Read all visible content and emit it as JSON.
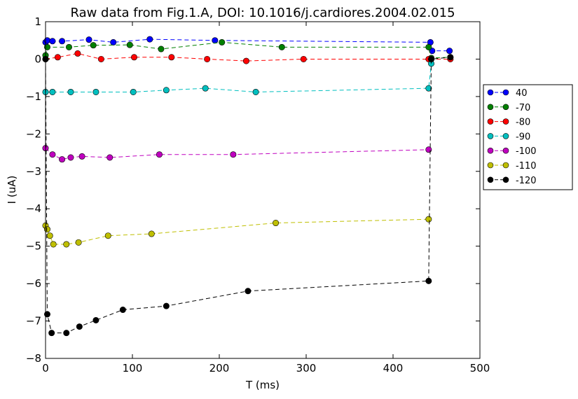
{
  "chart_data": {
    "type": "line",
    "title": "Raw data from Fig.1.A, DOI: 10.1016/j.cardiores.2004.02.015",
    "xlabel": "T (ms)",
    "ylabel": "I (uA)",
    "xlim": [
      0,
      500
    ],
    "ylim": [
      -8,
      1
    ],
    "xticks": [
      "0",
      "100",
      "200",
      "300",
      "400",
      "500"
    ],
    "yticks": [
      "−8",
      "−7",
      "−6",
      "−5",
      "−4",
      "−3",
      "−2",
      "−1",
      "0",
      "1"
    ],
    "grid": false,
    "legend_position": "outside-right",
    "series": [
      {
        "name": "40",
        "color": "#0000ff",
        "x": [
          0,
          2,
          8,
          19,
          50,
          78,
          120,
          195,
          443,
          445,
          465
        ],
        "y": [
          0.45,
          0.5,
          0.48,
          0.48,
          0.52,
          0.45,
          0.53,
          0.5,
          0.45,
          0.22,
          0.22
        ]
      },
      {
        "name": "-70",
        "color": "#008000",
        "x": [
          0,
          2,
          27,
          55,
          97,
          133,
          203,
          272,
          441,
          444,
          466
        ],
        "y": [
          0.1,
          0.32,
          0.32,
          0.37,
          0.38,
          0.27,
          0.45,
          0.32,
          0.32,
          0.03,
          0.05
        ]
      },
      {
        "name": "-80",
        "color": "#ff0000",
        "x": [
          0,
          14,
          37,
          64,
          102,
          145,
          186,
          231,
          297,
          441,
          444,
          466
        ],
        "y": [
          0.0,
          0.05,
          0.15,
          0.0,
          0.05,
          0.05,
          0.0,
          -0.05,
          0.0,
          0.0,
          0.0,
          0.0
        ]
      },
      {
        "name": "-90",
        "color": "#00bfbf",
        "x": [
          0,
          8,
          29,
          58,
          101,
          139,
          184,
          242,
          441,
          444
        ],
        "y": [
          -0.88,
          -0.88,
          -0.88,
          -0.88,
          -0.88,
          -0.83,
          -0.78,
          -0.88,
          -0.78,
          -0.12
        ]
      },
      {
        "name": "-100",
        "color": "#bf00bf",
        "x": [
          0,
          8,
          19,
          29,
          42,
          74,
          131,
          216,
          441
        ],
        "y": [
          -2.38,
          -2.55,
          -2.68,
          -2.63,
          -2.6,
          -2.63,
          -2.55,
          -2.55,
          -2.42
        ]
      },
      {
        "name": "-110",
        "color": "#bfbf00",
        "x": [
          0,
          2,
          5,
          9,
          24,
          38,
          72,
          122,
          265,
          441
        ],
        "y": [
          -4.45,
          -4.55,
          -4.72,
          -4.95,
          -4.95,
          -4.9,
          -4.72,
          -4.67,
          -4.38,
          -4.28
        ]
      },
      {
        "name": "-120",
        "color": "#000000",
        "x": [
          0,
          2,
          7,
          24,
          39,
          58,
          89,
          139,
          233,
          441,
          444,
          466
        ],
        "y": [
          0.0,
          -6.82,
          -7.32,
          -7.32,
          -7.15,
          -6.98,
          -6.7,
          -6.6,
          -6.2,
          -5.93,
          0.0,
          0.05
        ]
      }
    ]
  }
}
